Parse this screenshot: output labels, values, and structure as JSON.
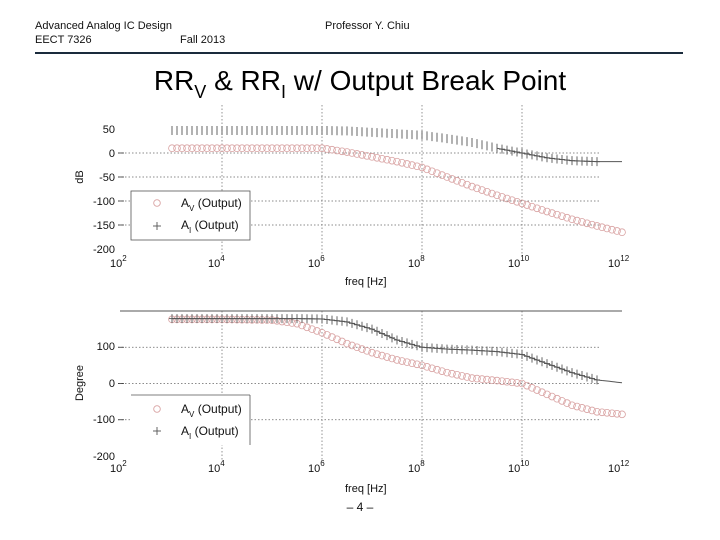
{
  "header": {
    "course_title": "Advanced Analog IC Design",
    "course_code": "EECT 7326",
    "term": "Fall 2013",
    "instructor": "Professor Y. Chiu"
  },
  "slide": {
    "title_main": "RR",
    "title_sub_v": "V",
    "title_mid": " & RR",
    "title_sub_i": "I",
    "title_end": " w/ Output Break Point",
    "page_number": "– 4 –"
  },
  "colors": {
    "rule": "#1a2b3c",
    "av_marker": "#d9a3a3",
    "ai_marker": "#555555",
    "grid": "#666666"
  },
  "chart_data": [
    {
      "type": "line",
      "title": "",
      "xlabel": "freq [Hz]",
      "ylabel": "dB",
      "xscale": "log",
      "xlim": [
        100,
        1000000000000
      ],
      "ylim": [
        -200,
        50
      ],
      "yticks": [
        50,
        0,
        -50,
        -100,
        -150,
        -200
      ],
      "xticks": [
        "10^2",
        "10^4",
        "10^6",
        "10^8",
        "10^10",
        "10^12"
      ],
      "grid": true,
      "legend_position": "lower left",
      "series": [
        {
          "name": "A_V (Output)",
          "marker": "circle",
          "x_log10": [
            3,
            4,
            5,
            6,
            6.5,
            7,
            7.5,
            8,
            8.5,
            9,
            9.5,
            10,
            10.5,
            11,
            11.5,
            12
          ],
          "values": [
            10,
            10,
            10,
            10,
            2,
            -8,
            -18,
            -30,
            -50,
            -70,
            -88,
            -105,
            -122,
            -138,
            -152,
            -165
          ]
        },
        {
          "name": "A_I (Output)",
          "marker": "plus",
          "x_log10": [
            3,
            4,
            5,
            6,
            6.5,
            7,
            7.5,
            8,
            8.5,
            9,
            9.5,
            10,
            10.5,
            11,
            11.5,
            12
          ],
          "values": [
            47,
            47,
            47,
            47,
            46,
            43,
            40,
            37,
            30,
            22,
            10,
            0,
            -10,
            -16,
            -18,
            -18
          ]
        }
      ]
    },
    {
      "type": "line",
      "title": "",
      "xlabel": "freq [Hz]",
      "ylabel": "Degree",
      "xscale": "log",
      "xlim": [
        100,
        1000000000000
      ],
      "ylim": [
        -200,
        200
      ],
      "yticks": [
        100,
        0,
        -100,
        -200
      ],
      "xticks": [
        "10^2",
        "10^4",
        "10^6",
        "10^8",
        "10^10",
        "10^12"
      ],
      "grid": true,
      "legend_position": "lower left",
      "series": [
        {
          "name": "A_V (Output)",
          "marker": "circle",
          "x_log10": [
            3,
            4,
            5,
            5.5,
            6,
            6.5,
            7,
            7.5,
            8,
            8.5,
            9,
            9.5,
            10,
            10.5,
            11,
            11.5,
            12
          ],
          "values": [
            177,
            177,
            175,
            165,
            140,
            110,
            85,
            65,
            50,
            30,
            15,
            8,
            0,
            -30,
            -60,
            -78,
            -85
          ]
        },
        {
          "name": "A_I (Output)",
          "marker": "plus",
          "x_log10": [
            3,
            4,
            5,
            5.5,
            6,
            6.5,
            7,
            7.5,
            8,
            8.5,
            9,
            9.5,
            10,
            10.5,
            11,
            11.5,
            12
          ],
          "values": [
            179,
            179,
            179,
            179,
            178,
            170,
            150,
            120,
            100,
            95,
            92,
            88,
            80,
            55,
            30,
            10,
            2
          ]
        }
      ]
    }
  ],
  "plots": {
    "magnitude": {
      "ylabel": "dB",
      "xlabel": "freq [Hz]",
      "ytick_labels": [
        "50",
        "0",
        "-50",
        "-100",
        "-150",
        "-200"
      ],
      "xtick_bases": [
        "10",
        "10",
        "10",
        "10",
        "10",
        "10"
      ],
      "xtick_exps": [
        "2",
        "4",
        "6",
        "8",
        "10",
        "12"
      ],
      "legend": [
        {
          "base": "A",
          "sub": "V",
          "label": " (Output)"
        },
        {
          "base": "A",
          "sub": "I",
          "label": " (Output)"
        }
      ]
    },
    "phase": {
      "ylabel": "Degree",
      "xlabel": "freq [Hz]",
      "ytick_labels": [
        "100",
        "0",
        "-100",
        "-200"
      ],
      "xtick_bases": [
        "10",
        "10",
        "10",
        "10",
        "10",
        "10"
      ],
      "xtick_exps": [
        "2",
        "4",
        "6",
        "8",
        "10",
        "12"
      ],
      "legend": [
        {
          "base": "A",
          "sub": "V",
          "label": " (Output)"
        },
        {
          "base": "A",
          "sub": "I",
          "label": " (Output)"
        }
      ]
    }
  }
}
